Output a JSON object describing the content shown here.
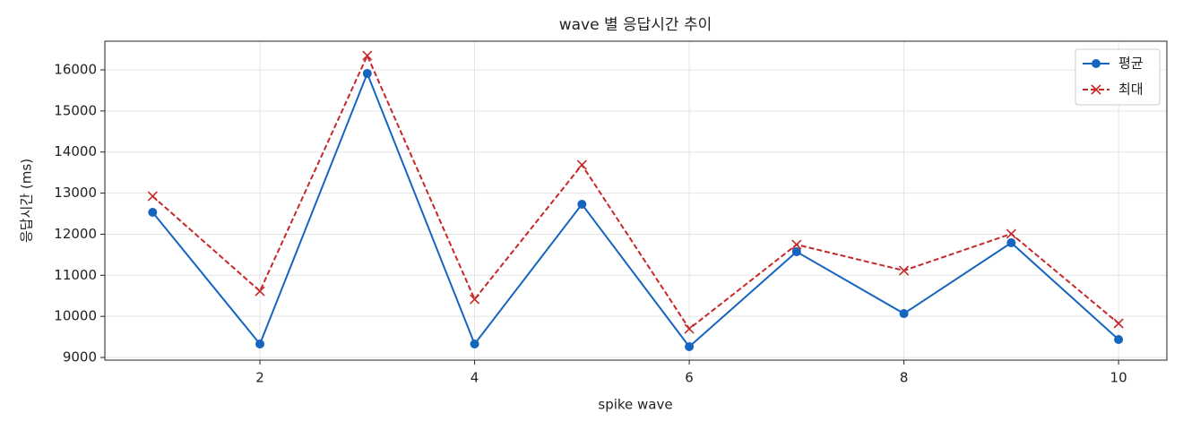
{
  "chart_data": {
    "type": "line",
    "title": "wave 별 응답시간 추이",
    "x_label": "spike wave",
    "y_label": "응답시간 (ms)",
    "x": [
      1,
      2,
      3,
      4,
      5,
      6,
      7,
      8,
      9,
      10
    ],
    "series": [
      {
        "name": "평균",
        "color": "#1565c0",
        "marker": "circle",
        "dash": "solid",
        "values": [
          12533,
          9327,
          15912,
          9327,
          12729,
          9262,
          11573,
          10068,
          11791,
          9436
        ]
      },
      {
        "name": "최대",
        "color": "#c62828",
        "marker": "x",
        "dash": "dashed",
        "values": [
          12925,
          10614,
          16348,
          10417,
          13688,
          9698,
          11747,
          11115,
          12009,
          9829
        ]
      }
    ],
    "xlim": [
      0.555,
      10.45
    ],
    "xticks": [
      2,
      4,
      6,
      8,
      10
    ],
    "ylim": [
      8935,
      16698
    ],
    "yticks": [
      9000,
      10000,
      11000,
      12000,
      13000,
      14000,
      15000,
      16000
    ],
    "grid": true,
    "legend": "upper-right"
  }
}
